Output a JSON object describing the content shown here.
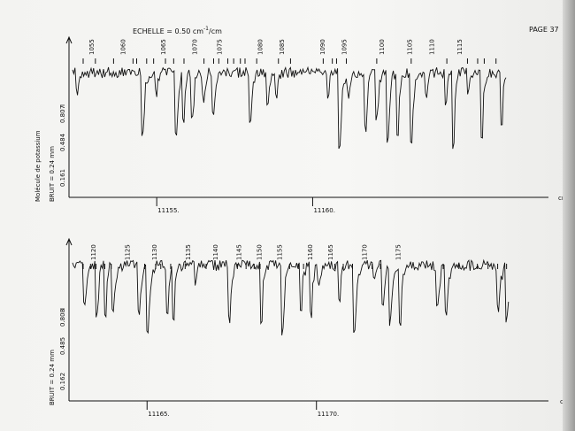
{
  "header": {
    "scale_label": "ECHELLE = 0.50 cm",
    "scale_superscript": "-1",
    "scale_unit": "/cm",
    "page_label": "PAGE 37"
  },
  "side": {
    "molecule_label": "Molécule de potassium",
    "noise_label": "BRUIT = 0.24 mm"
  },
  "axis": {
    "unit": "cm",
    "unit_superscript": "-1"
  },
  "chart_data": [
    {
      "type": "line",
      "title": "",
      "xlabel": "cm-1",
      "ylabel": "I",
      "xlim": [
        11152.3,
        11166.2
      ],
      "x_ticks": [
        11155,
        11160
      ],
      "x_tick_labels": [
        "11155.",
        "11160."
      ],
      "y_tick_labels": [
        "0.161",
        "0.484",
        "0.807"
      ],
      "line_numbers": [
        "1055",
        "1060",
        "1065",
        "1070",
        "1075",
        "1080",
        "1085",
        "1090",
        "1095",
        "1100",
        "1105",
        "1110",
        "1115"
      ],
      "line_number_positions": [
        11152.9,
        11153.9,
        11155.2,
        11156.2,
        11157.0,
        11158.3,
        11159.0,
        11160.3,
        11161.0,
        11162.2,
        11163.1,
        11163.8,
        11164.7
      ],
      "noise": "0.24 mm"
    },
    {
      "type": "line",
      "title": "",
      "xlabel": "cm-1",
      "ylabel": "I",
      "xlim": [
        11162.8,
        11175.7
      ],
      "x_ticks": [
        11165,
        11170
      ],
      "x_tick_labels": [
        "11165.",
        "11170."
      ],
      "y_tick_labels": [
        "0.162",
        "0.485",
        "0.808"
      ],
      "line_numbers": [
        "1120",
        "1125",
        "1130",
        "1135",
        "1140",
        "1145",
        "1150",
        "1155",
        "1160",
        "1165",
        "1170",
        "1175"
      ],
      "line_number_positions": [
        11163.4,
        11164.4,
        11165.2,
        11166.2,
        11167.0,
        11167.7,
        11168.3,
        11168.9,
        11169.8,
        11170.4,
        11171.4,
        11172.4
      ],
      "noise": "0.24 mm"
    }
  ]
}
